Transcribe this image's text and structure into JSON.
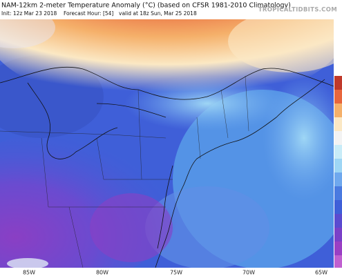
{
  "header": {
    "title": "NAM-12km 2-meter Temperature Anomaly (°C) (based on CFSR 1981-2010 Climatology)",
    "init": "Init: 12z Mar 23 2018",
    "forecast_hour": "Forecast Hour: [54]",
    "valid": "valid at 18z Sun, Mar 25 2018",
    "brand": "TROPICALTIDBITS.COM"
  },
  "map": {
    "longitude_labels": [
      "85W",
      "80W",
      "75W",
      "70W",
      "65W"
    ]
  }
}
